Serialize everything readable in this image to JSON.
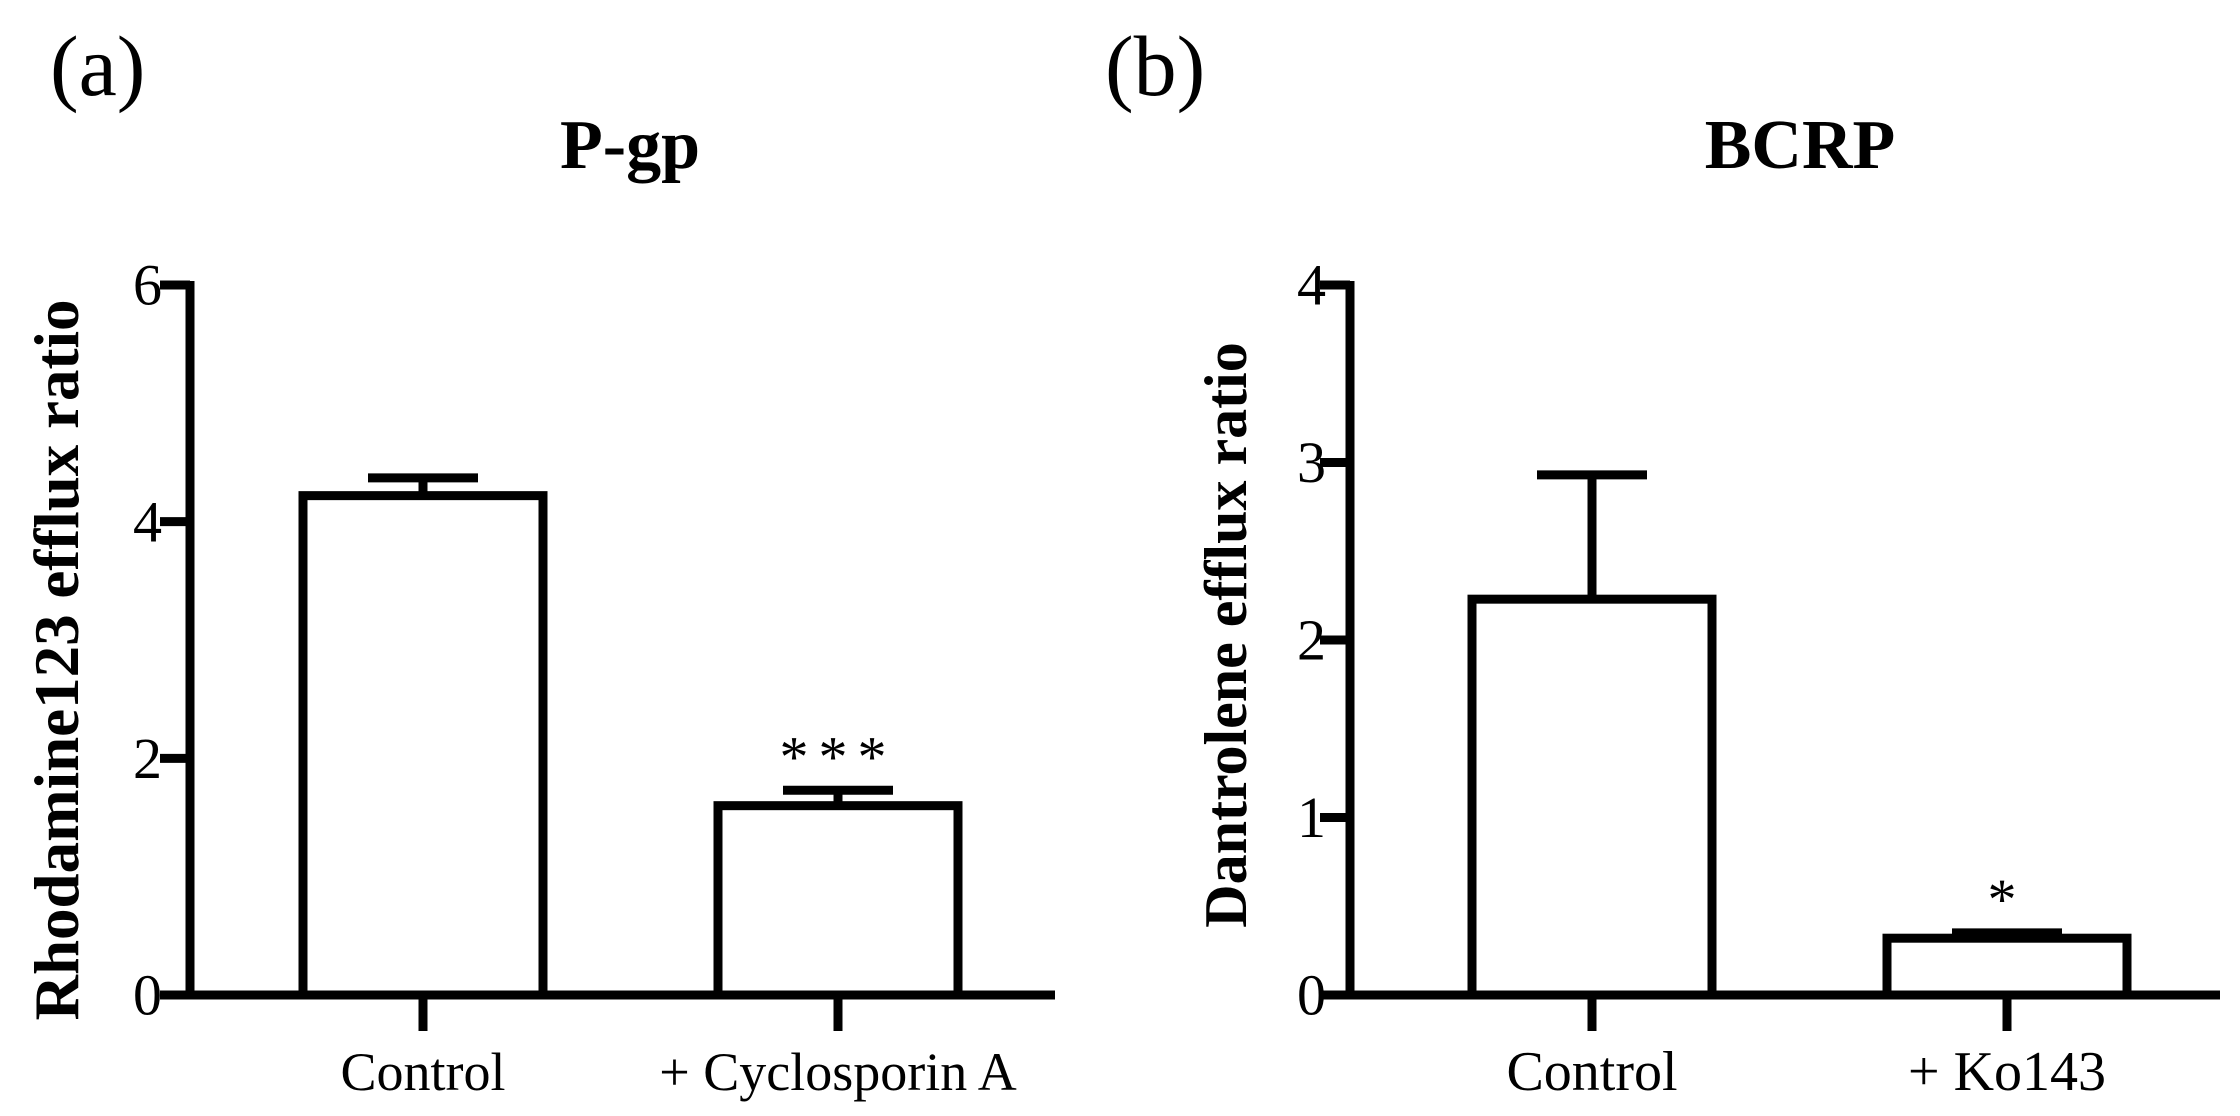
{
  "chart_data": [
    {
      "type": "bar",
      "panel_label": "(a)",
      "title": "P-gp",
      "xlabel": "",
      "ylabel": "Rhodamine123 efflux ratio",
      "categories": [
        "Control",
        "+ Cyclosporin A"
      ],
      "values": [
        4.22,
        1.6
      ],
      "errors": [
        0.15,
        0.13
      ],
      "annotations": [
        "",
        "***"
      ],
      "ylim": [
        0,
        6
      ],
      "yticks": [
        0,
        2,
        4,
        6
      ],
      "ytick_labels": [
        "0",
        "2",
        "4",
        "6"
      ],
      "grid": false
    },
    {
      "type": "bar",
      "panel_label": "(b)",
      "title": "BCRP",
      "xlabel": "",
      "ylabel": "Dantrolene efflux ratio",
      "categories": [
        "Control",
        "+ Ko143"
      ],
      "values": [
        2.23,
        0.32
      ],
      "errors": [
        0.7,
        0.03
      ],
      "annotations": [
        "",
        "*"
      ],
      "ylim": [
        0,
        4
      ],
      "yticks": [
        0,
        1,
        2,
        3,
        4
      ],
      "ytick_labels": [
        "0",
        "1",
        "2",
        "3",
        "4"
      ],
      "grid": false
    }
  ]
}
